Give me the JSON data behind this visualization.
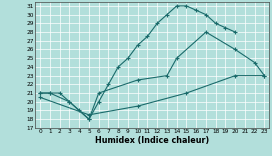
{
  "xlabel": "Humidex (Indice chaleur)",
  "bg_color": "#b2dfdb",
  "grid_color": "#ffffff",
  "line_color": "#1a6b6b",
  "xlim": [
    -0.5,
    23.5
  ],
  "ylim": [
    17,
    31.5
  ],
  "xticks": [
    0,
    1,
    2,
    3,
    4,
    5,
    6,
    7,
    8,
    9,
    10,
    11,
    12,
    13,
    14,
    15,
    16,
    17,
    18,
    19,
    20,
    21,
    22,
    23
  ],
  "yticks": [
    17,
    18,
    19,
    20,
    21,
    22,
    23,
    24,
    25,
    26,
    27,
    28,
    29,
    30,
    31
  ],
  "line1_x": [
    0,
    1,
    2,
    3,
    4,
    5,
    6,
    7,
    8,
    9,
    10,
    11,
    12,
    13,
    14,
    15,
    16,
    17,
    18,
    19,
    20
  ],
  "line1_y": [
    21,
    21,
    21,
    20,
    19,
    18,
    20,
    22,
    24,
    25,
    26.5,
    27.5,
    29,
    30,
    31,
    31,
    30.5,
    30,
    29,
    28.5,
    28
  ],
  "line2_x": [
    0,
    1,
    3,
    5,
    6,
    10,
    13,
    14,
    17,
    20,
    22,
    23
  ],
  "line2_y": [
    21,
    21,
    20,
    18,
    21,
    22.5,
    23,
    25,
    28,
    26,
    24.5,
    23
  ],
  "line3_x": [
    0,
    5,
    10,
    15,
    20,
    23
  ],
  "line3_y": [
    20.5,
    18.5,
    19.5,
    21,
    23,
    23
  ]
}
